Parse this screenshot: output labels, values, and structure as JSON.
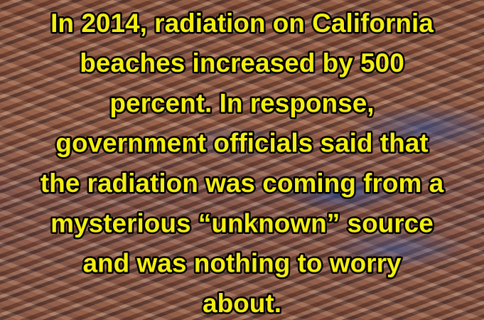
{
  "caption": {
    "lines": [
      "In 2014, radiation on California",
      "beaches increased by 500",
      "percent. In response,",
      "government officials said that",
      "the radiation was coming from a",
      "mysterious “unknown” source",
      "and was nothing to worry",
      "about."
    ]
  }
}
